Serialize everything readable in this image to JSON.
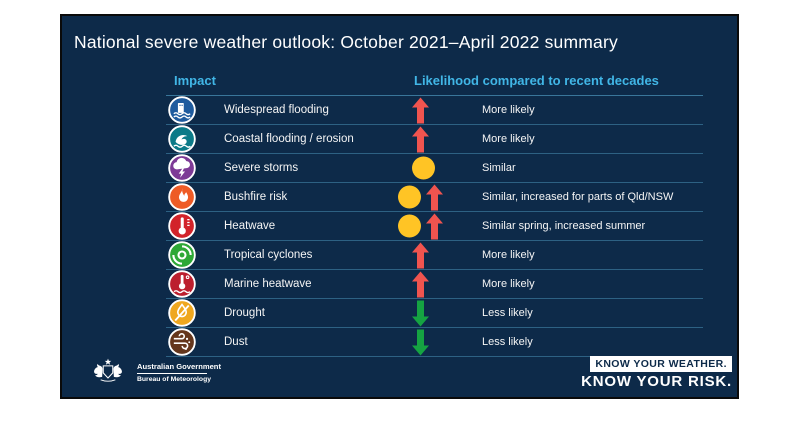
{
  "title": "National severe weather outlook: October 2021–April 2022 summary",
  "table": {
    "impact_header": "Impact",
    "likelihood_header": "Likelihood compared to recent decades",
    "rows": [
      {
        "impact": "Widespread flooding",
        "icon": "widespread-flooding-icon",
        "icon_color": "#1E5B9E",
        "symbols": [
          "up-arrow"
        ],
        "likelihood": "More likely"
      },
      {
        "impact": "Coastal flooding / erosion",
        "icon": "coastal-flooding-icon",
        "icon_color": "#0B7A88",
        "symbols": [
          "up-arrow"
        ],
        "likelihood": "More likely"
      },
      {
        "impact": "Severe storms",
        "icon": "severe-storms-icon",
        "icon_color": "#7D3A96",
        "symbols": [
          "dot"
        ],
        "likelihood": "Similar"
      },
      {
        "impact": "Bushfire risk",
        "icon": "bushfire-icon",
        "icon_color": "#EE5B26",
        "symbols": [
          "dot",
          "up-arrow"
        ],
        "likelihood": "Similar, increased for parts of Qld/NSW"
      },
      {
        "impact": "Heatwave",
        "icon": "heatwave-icon",
        "icon_color": "#D2232A",
        "symbols": [
          "dot",
          "up-arrow"
        ],
        "likelihood": "Similar spring, increased summer"
      },
      {
        "impact": "Tropical cyclones",
        "icon": "tropical-cyclone-icon",
        "icon_color": "#2EA836",
        "symbols": [
          "up-arrow"
        ],
        "likelihood": "More likely"
      },
      {
        "impact": "Marine heatwave",
        "icon": "marine-heatwave-icon",
        "icon_color": "#BC1F2E",
        "symbols": [
          "up-arrow"
        ],
        "likelihood": "More likely"
      },
      {
        "impact": "Drought",
        "icon": "drought-icon",
        "icon_color": "#EFA71E",
        "symbols": [
          "down-arrow"
        ],
        "likelihood": "Less likely"
      },
      {
        "impact": "Dust",
        "icon": "dust-icon",
        "icon_color": "#64361C",
        "symbols": [
          "down-arrow"
        ],
        "likelihood": "Less likely"
      }
    ]
  },
  "footer": {
    "gov_line1": "Australian Government",
    "gov_line2": "Bureau of Meteorology",
    "brand_line1": "KNOW YOUR WEATHER.",
    "brand_line2": "KNOW YOUR RISK."
  },
  "colors": {
    "panel_background": "#0D2A49",
    "header_text": "#41B6E6",
    "up_arrow": "#F0544F",
    "down_arrow": "#15A342",
    "dot": "#FFC425"
  }
}
